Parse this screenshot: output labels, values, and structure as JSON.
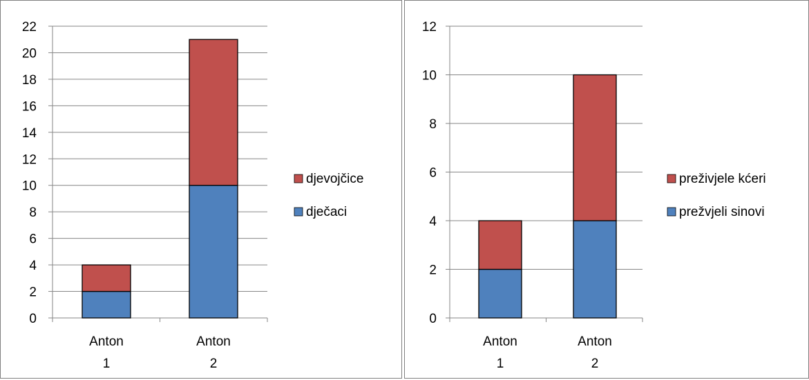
{
  "chart_data": [
    {
      "type": "bar",
      "stacked": true,
      "categories": [
        [
          "Anton",
          "1"
        ],
        [
          "Anton",
          "2"
        ]
      ],
      "series": [
        {
          "name": "dječaci",
          "values": [
            2,
            10
          ],
          "color": "#4f81bd"
        },
        {
          "name": "djevojčice",
          "values": [
            2,
            11
          ],
          "color": "#c0504d"
        }
      ],
      "ylim": [
        0,
        22
      ],
      "yticks": [
        0,
        2,
        4,
        6,
        8,
        10,
        12,
        14,
        16,
        18,
        20,
        22
      ],
      "grid": true,
      "legend": "right",
      "legend_order": [
        "djevojčice",
        "dječaci"
      ]
    },
    {
      "type": "bar",
      "stacked": true,
      "categories": [
        [
          "Anton",
          "1"
        ],
        [
          "Anton",
          "2"
        ]
      ],
      "series": [
        {
          "name": "prežvjeli sinovi",
          "values": [
            2,
            4
          ],
          "color": "#4f81bd"
        },
        {
          "name": "preživjele kćeri",
          "values": [
            2,
            6
          ],
          "color": "#c0504d"
        }
      ],
      "ylim": [
        0,
        12
      ],
      "yticks": [
        0,
        2,
        4,
        6,
        8,
        10,
        12
      ],
      "grid": true,
      "legend": "right",
      "legend_order": [
        "preživjele kćeri",
        "prežvjeli sinovi"
      ]
    }
  ]
}
